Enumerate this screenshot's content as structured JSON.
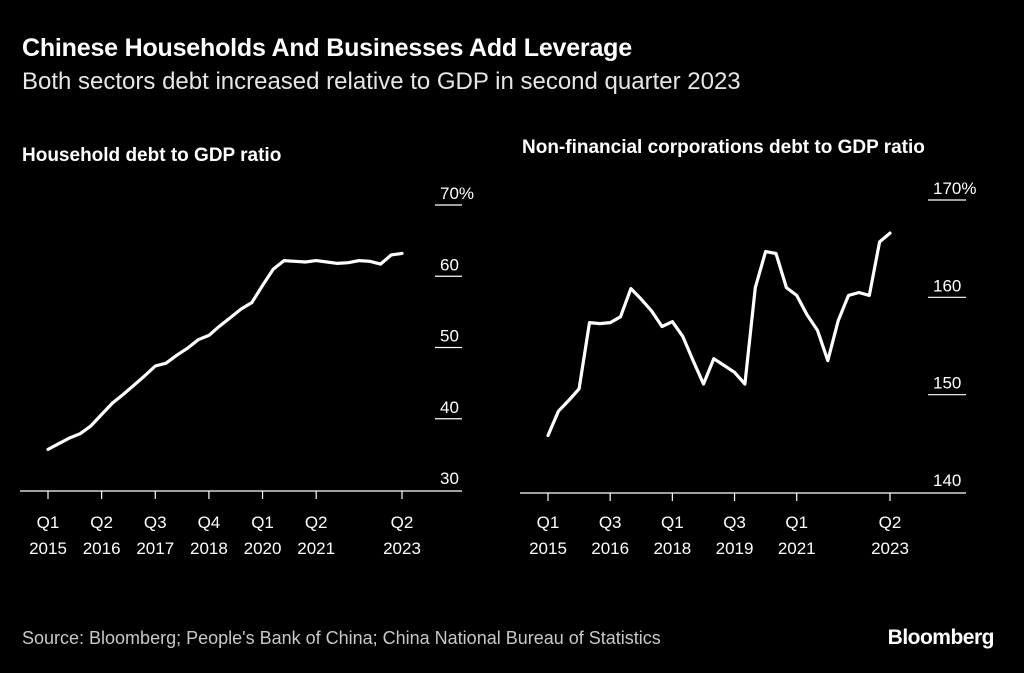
{
  "title": "Chinese Households And Businesses Add Leverage",
  "subtitle": "Both sectors debt increased relative to GDP in second quarter 2023",
  "source": "Source: Bloomberg; People's Bank of China; China National Bureau of Statistics",
  "brand": "Bloomberg",
  "colors": {
    "background": "#000000",
    "line": "#ffffff",
    "text": "#ffffff"
  },
  "chart_data": [
    {
      "type": "line",
      "title": "Household debt to GDP ratio",
      "ylim": [
        30,
        70
      ],
      "yticks": [
        {
          "v": 70,
          "label": "70%"
        },
        {
          "v": 60,
          "label": "60"
        },
        {
          "v": 50,
          "label": "50"
        },
        {
          "v": 40,
          "label": "40"
        },
        {
          "v": 30,
          "label": "30"
        }
      ],
      "xticks": [
        {
          "i": 0,
          "line1": "Q1",
          "line2": "2015"
        },
        {
          "i": 5,
          "line1": "Q2",
          "line2": "2016"
        },
        {
          "i": 10,
          "line1": "Q3",
          "line2": "2017"
        },
        {
          "i": 15,
          "line1": "Q4",
          "line2": "2018"
        },
        {
          "i": 20,
          "line1": "Q1",
          "line2": "2020"
        },
        {
          "i": 25,
          "line1": "Q2",
          "line2": "2021"
        },
        {
          "i": 33,
          "line1": "Q2",
          "line2": "2023"
        }
      ],
      "values": [
        35.7,
        36.5,
        37.3,
        37.9,
        39.0,
        40.6,
        42.2,
        43.4,
        44.7,
        46.0,
        47.4,
        47.8,
        48.9,
        49.9,
        51.1,
        51.7,
        53.0,
        54.2,
        55.4,
        56.3,
        58.7,
        61.0,
        62.2,
        62.1,
        62.0,
        62.2,
        62.0,
        61.8,
        61.9,
        62.2,
        62.1,
        61.7,
        63.0,
        63.2
      ]
    },
    {
      "type": "line",
      "title": "Non-financial corporations debt to GDP ratio",
      "ylim": [
        140,
        170
      ],
      "yticks": [
        {
          "v": 170,
          "label": "170%"
        },
        {
          "v": 160,
          "label": "160"
        },
        {
          "v": 150,
          "label": "150"
        },
        {
          "v": 140,
          "label": "140"
        }
      ],
      "xticks": [
        {
          "i": 0,
          "line1": "Q1",
          "line2": "2015"
        },
        {
          "i": 6,
          "line1": "Q3",
          "line2": "2016"
        },
        {
          "i": 12,
          "line1": "Q1",
          "line2": "2018"
        },
        {
          "i": 18,
          "line1": "Q3",
          "line2": "2019"
        },
        {
          "i": 24,
          "line1": "Q1",
          "line2": "2021"
        },
        {
          "i": 33,
          "line1": "Q2",
          "line2": "2023"
        }
      ],
      "values": [
        145.8,
        148.3,
        149.4,
        150.6,
        157.4,
        157.3,
        157.4,
        158.0,
        160.9,
        159.8,
        158.6,
        157.0,
        157.5,
        156.0,
        153.5,
        151.1,
        153.7,
        153.0,
        152.3,
        151.1,
        161.0,
        164.7,
        164.5,
        161.0,
        160.2,
        158.2,
        156.6,
        153.5,
        157.6,
        160.2,
        160.5,
        160.2,
        165.7,
        166.6
      ]
    }
  ]
}
